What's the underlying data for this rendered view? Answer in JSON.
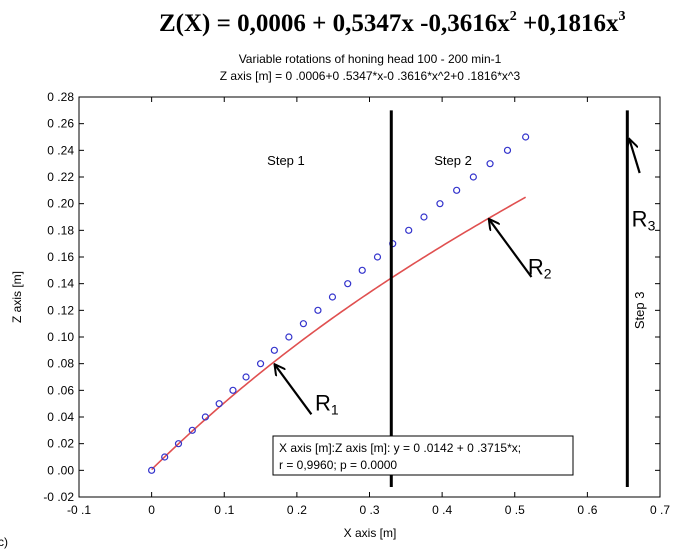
{
  "header": {
    "equation_main": "Z(X) = 0,0006 + 0,5347x -0,3616x",
    "sup2": "2",
    "equation_mid": " +0,1816x",
    "sup3": "3"
  },
  "panel_label": "c)",
  "chart_data": {
    "type": "scatter",
    "title": "Variable rotations of honing head 100 - 200 min-1",
    "subtitle": "Z axis [m] = 0 .0006+0 .5347*x-0 .3616*x^2+0 .1816*x^3",
    "xlabel": "X axis [m]",
    "ylabel": "Z axis [m]",
    "xlim": [
      -0.1,
      0.7
    ],
    "ylim": [
      -0.02,
      0.28
    ],
    "xticks": [
      -0.1,
      0,
      0.1,
      0.2,
      0.3,
      0.4,
      0.5,
      0.6,
      0.7
    ],
    "xtick_labels": [
      "-0 .1",
      "0",
      "0 .1",
      "0 .2",
      "0 .3",
      "0 .4",
      "0 .5",
      "0 .6",
      "0 .7"
    ],
    "yticks": [
      -0.02,
      0,
      0.02,
      0.04,
      0.06,
      0.08,
      0.1,
      0.12,
      0.14,
      0.16,
      0.18,
      0.2,
      0.22,
      0.24,
      0.26,
      0.28
    ],
    "ytick_labels": [
      "-0 .02",
      "0 .00",
      "0 .02",
      "0 .04",
      "0 .06",
      "0 .08",
      "0 .10",
      "0 .12",
      "0 .14",
      "0 .16",
      "0 .18",
      "0 .20",
      "0 .22",
      "0 .24",
      "0 .26",
      "0 .28"
    ],
    "points": [
      [
        0,
        0
      ],
      [
        0.018,
        0.01
      ],
      [
        0.037,
        0.02
      ],
      [
        0.056,
        0.03
      ],
      [
        0.074,
        0.04
      ],
      [
        0.093,
        0.05
      ],
      [
        0.112,
        0.06
      ],
      [
        0.13,
        0.07
      ],
      [
        0.15,
        0.08
      ],
      [
        0.169,
        0.09
      ],
      [
        0.189,
        0.1
      ],
      [
        0.209,
        0.11
      ],
      [
        0.229,
        0.12
      ],
      [
        0.249,
        0.13
      ],
      [
        0.27,
        0.14
      ],
      [
        0.29,
        0.15
      ],
      [
        0.311,
        0.16
      ],
      [
        0.332,
        0.17
      ],
      [
        0.354,
        0.18
      ],
      [
        0.375,
        0.19
      ],
      [
        0.397,
        0.2
      ],
      [
        0.42,
        0.21
      ],
      [
        0.443,
        0.22
      ],
      [
        0.466,
        0.23
      ],
      [
        0.49,
        0.24
      ],
      [
        0.515,
        0.25
      ]
    ],
    "fit_coefficients": [
      0.0006,
      0.5347,
      -0.3616,
      0.1816
    ],
    "point_color": "#3333cc",
    "curve_color": "#e05050",
    "step_lines": [
      {
        "x": 0.33,
        "y_top": 0.27,
        "y_bottom": -0.0125
      },
      {
        "x": 0.655,
        "y_top": 0.27,
        "y_bottom": -0.0125
      }
    ],
    "step_labels": [
      {
        "text": "Step 1",
        "x": 0.185,
        "y": 0.229,
        "rotate": false
      },
      {
        "text": "Step 2",
        "x": 0.415,
        "y": 0.229,
        "rotate": false
      },
      {
        "text": "Step 3",
        "x": 0.678,
        "y": 0.12,
        "rotate": true
      }
    ],
    "annotations": [
      {
        "label": "R",
        "sub": "1",
        "text_x": 0.225,
        "text_y": 0.045,
        "tip": [
          0.17,
          0.079
        ],
        "tail": [
          0.22,
          0.042
        ]
      },
      {
        "label": "R",
        "sub": "2",
        "text_x": 0.518,
        "text_y": 0.147,
        "tip": [
          0.465,
          0.188
        ],
        "tail": [
          0.523,
          0.145
        ]
      },
      {
        "label": "R",
        "sub": "3",
        "text_x": 0.661,
        "text_y": 0.183,
        "tip": [
          0.658,
          0.248
        ],
        "tail": [
          0.672,
          0.223
        ]
      }
    ],
    "legend_box": {
      "line1": "X axis [m]:Z axis [m]:   y = 0 .0142 + 0 .3715*x;",
      "line2": "r = 0,9960; p = 0.0000"
    },
    "grid": false
  }
}
